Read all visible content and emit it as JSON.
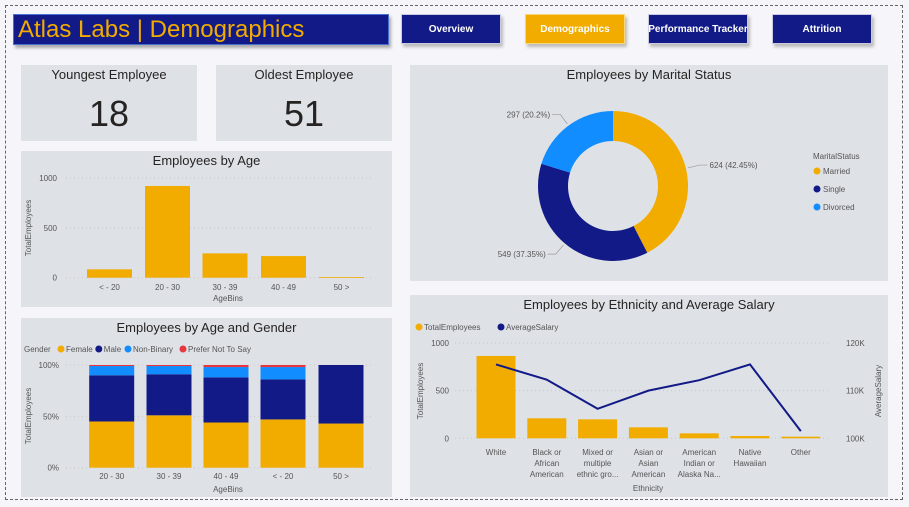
{
  "header": {
    "title": "Atlas Labs | Demographics",
    "nav": [
      {
        "label": "Overview",
        "active": false
      },
      {
        "label": "Demographics",
        "active": true
      },
      {
        "label": "Performance Tracker",
        "active": false
      },
      {
        "label": "Attrition",
        "active": false
      }
    ]
  },
  "colors": {
    "navy": "#111a86",
    "gold": "#f2ac00",
    "blue": "#118dff",
    "red": "#e8363f",
    "panel": "#dee1e6"
  },
  "cards": {
    "youngest": {
      "label": "Youngest Employee",
      "value": "18"
    },
    "oldest": {
      "label": "Oldest Employee",
      "value": "51"
    }
  },
  "chart_data": [
    {
      "id": "age",
      "type": "bar",
      "title": "Employees by Age",
      "xlabel": "AgeBins",
      "ylabel": "TotalEmployees",
      "categories": [
        "< - 20",
        "20 - 30",
        "30 - 39",
        "40 - 49",
        "50 >"
      ],
      "values": [
        84,
        920,
        244,
        217,
        5
      ],
      "ylim": [
        0,
        1000
      ],
      "yticks": [
        "0",
        "500",
        "1000"
      ],
      "grid": true
    },
    {
      "id": "age_gender",
      "type": "bar",
      "stacked": "percent",
      "title": "Employees by Age and Gender",
      "xlabel": "AgeBins",
      "ylabel": "TotalEmployees",
      "legend_title": "Gender",
      "legend": "top-left",
      "categories": [
        "20 - 30",
        "30 - 39",
        "40 - 49",
        "< - 20",
        "50 >"
      ],
      "series": [
        {
          "name": "Female",
          "color": "#f2ac00",
          "values": [
            45,
            51,
            44,
            47,
            43
          ]
        },
        {
          "name": "Male",
          "color": "#111a86",
          "values": [
            45,
            40,
            44,
            39,
            57
          ]
        },
        {
          "name": "Non-Binary",
          "color": "#118dff",
          "values": [
            9,
            8,
            10,
            12,
            0
          ]
        },
        {
          "name": "Prefer Not To Say",
          "color": "#e8363f",
          "values": [
            1,
            1,
            2,
            2,
            0
          ]
        }
      ],
      "yticks": [
        "0%",
        "50%",
        "100%"
      ],
      "grid": true
    },
    {
      "id": "marital",
      "type": "pie",
      "donut": true,
      "title": "Employees by Marital Status",
      "legend_title": "MaritalStatus",
      "legend": "right",
      "slices": [
        {
          "name": "Married",
          "value": 624,
          "label": "624 (42.45%)",
          "color": "#f2ac00"
        },
        {
          "name": "Single",
          "value": 549,
          "label": "549 (37.35%)",
          "color": "#111a86"
        },
        {
          "name": "Divorced",
          "value": 297,
          "label": "297 (20.2%)",
          "color": "#118dff"
        }
      ]
    },
    {
      "id": "ethnicity",
      "type": "bar+line",
      "title": "Employees by Ethnicity and Average Salary",
      "xlabel": "Ethnicity",
      "ylabel": "TotalEmployees",
      "y2label": "AverageSalary",
      "legend": "top-left",
      "categories": [
        [
          "White"
        ],
        [
          "Black or",
          "African",
          "American"
        ],
        [
          "Mixed or",
          "multiple",
          "ethnic gro..."
        ],
        [
          "Asian or",
          "Asian",
          "American"
        ],
        [
          "American",
          "Indian or",
          "Alaska Na..."
        ],
        [
          "Native",
          "Hawaiian"
        ],
        [
          "Other"
        ]
      ],
      "series": [
        {
          "name": "TotalEmployees",
          "type": "bar",
          "color": "#f2ac00",
          "values": [
            864,
            210,
            199,
            115,
            52,
            24,
            17
          ]
        },
        {
          "name": "AverageSalary",
          "type": "line",
          "color": "#111a86",
          "values": [
            115500,
            112300,
            106200,
            110000,
            112200,
            115500,
            101500
          ]
        }
      ],
      "ylim": [
        0,
        1000
      ],
      "yticks": [
        "0",
        "500",
        "1000"
      ],
      "y2lim": [
        100000,
        120000
      ],
      "y2ticks": [
        "100K",
        "110K",
        "120K"
      ],
      "grid": true
    }
  ]
}
